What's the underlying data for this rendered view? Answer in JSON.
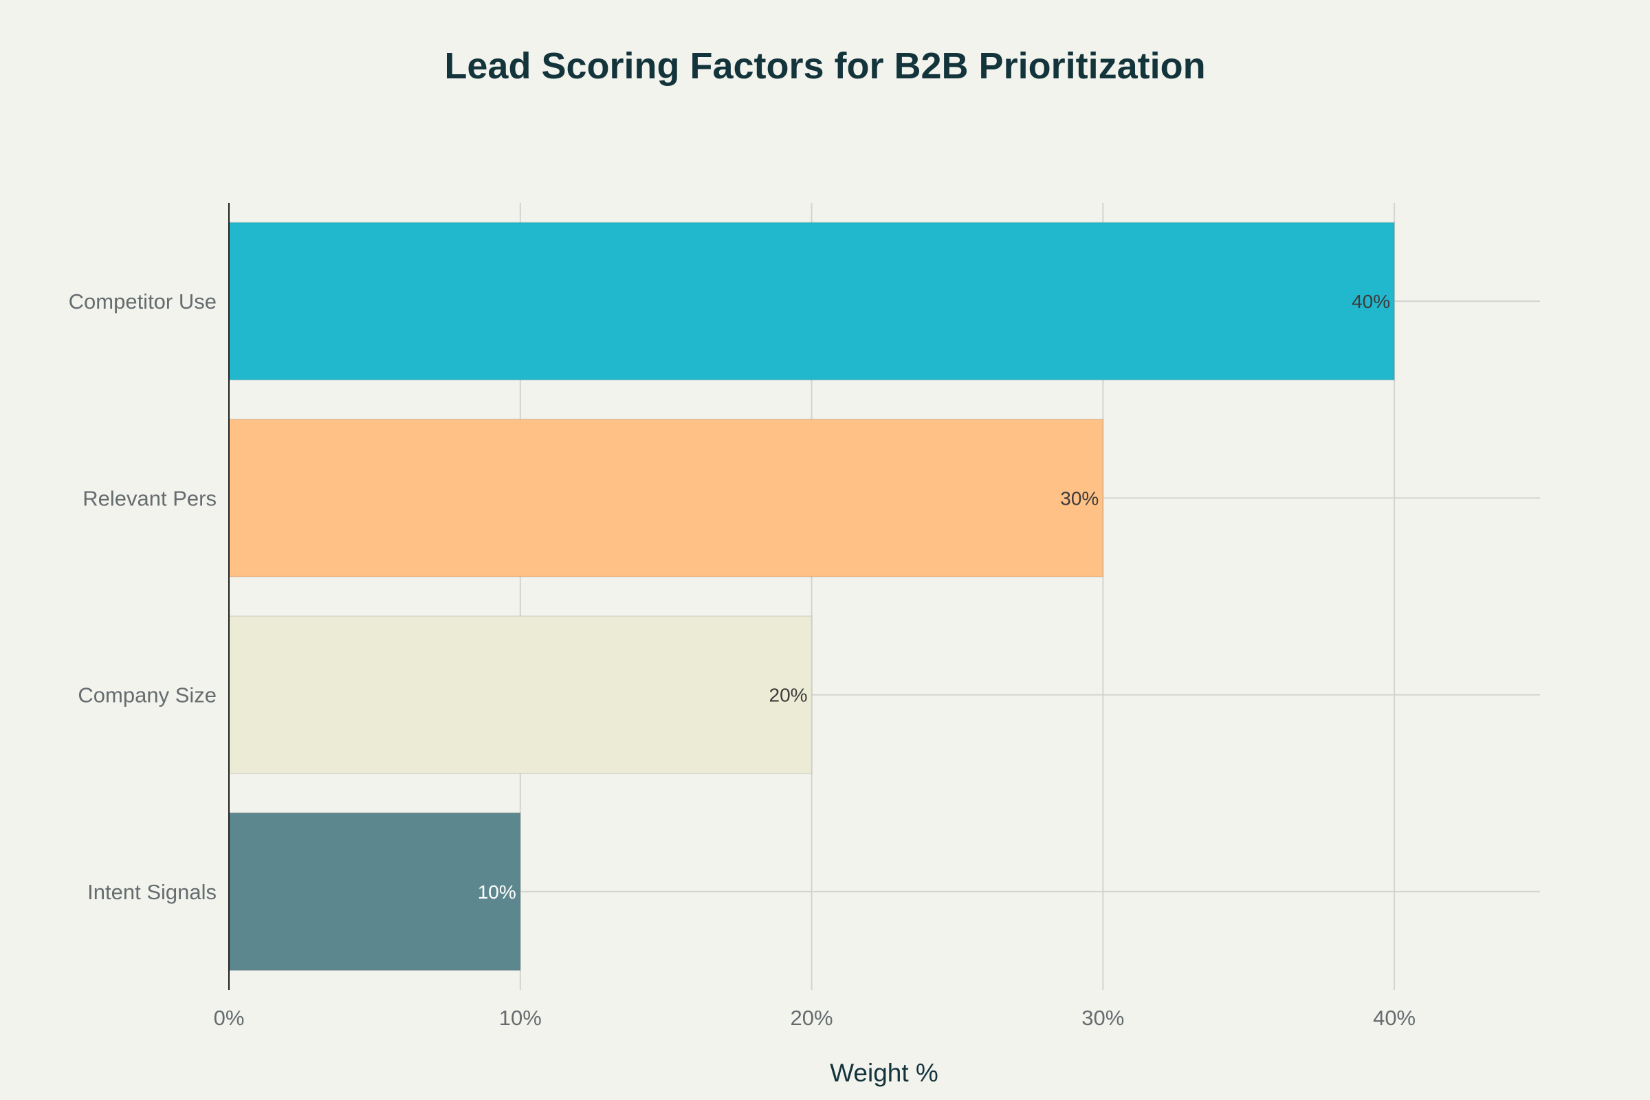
{
  "chart_data": {
    "type": "bar",
    "orientation": "horizontal",
    "title": "Lead Scoring Factors for B2B Prioritization",
    "xlabel": "Weight %",
    "ylabel": "",
    "xlim": [
      0,
      45
    ],
    "x_ticks": [
      0,
      10,
      20,
      30,
      40
    ],
    "x_tick_suffix": "%",
    "grid": true,
    "categories": [
      "Competitor Use",
      "Relevant Pers",
      "Company Size",
      "Intent Signals"
    ],
    "values": [
      40,
      30,
      20,
      10
    ],
    "data_labels": [
      "40%",
      "30%",
      "20%",
      "10%"
    ],
    "colors": [
      "#21B8CD",
      "#FFC185",
      "#ECEBD5",
      "#5D878F"
    ],
    "label_colors": [
      "#3B3B3B",
      "#3B3B3B",
      "#3B3B3B",
      "#FFFFFF"
    ],
    "background": "#F3F3EE"
  }
}
